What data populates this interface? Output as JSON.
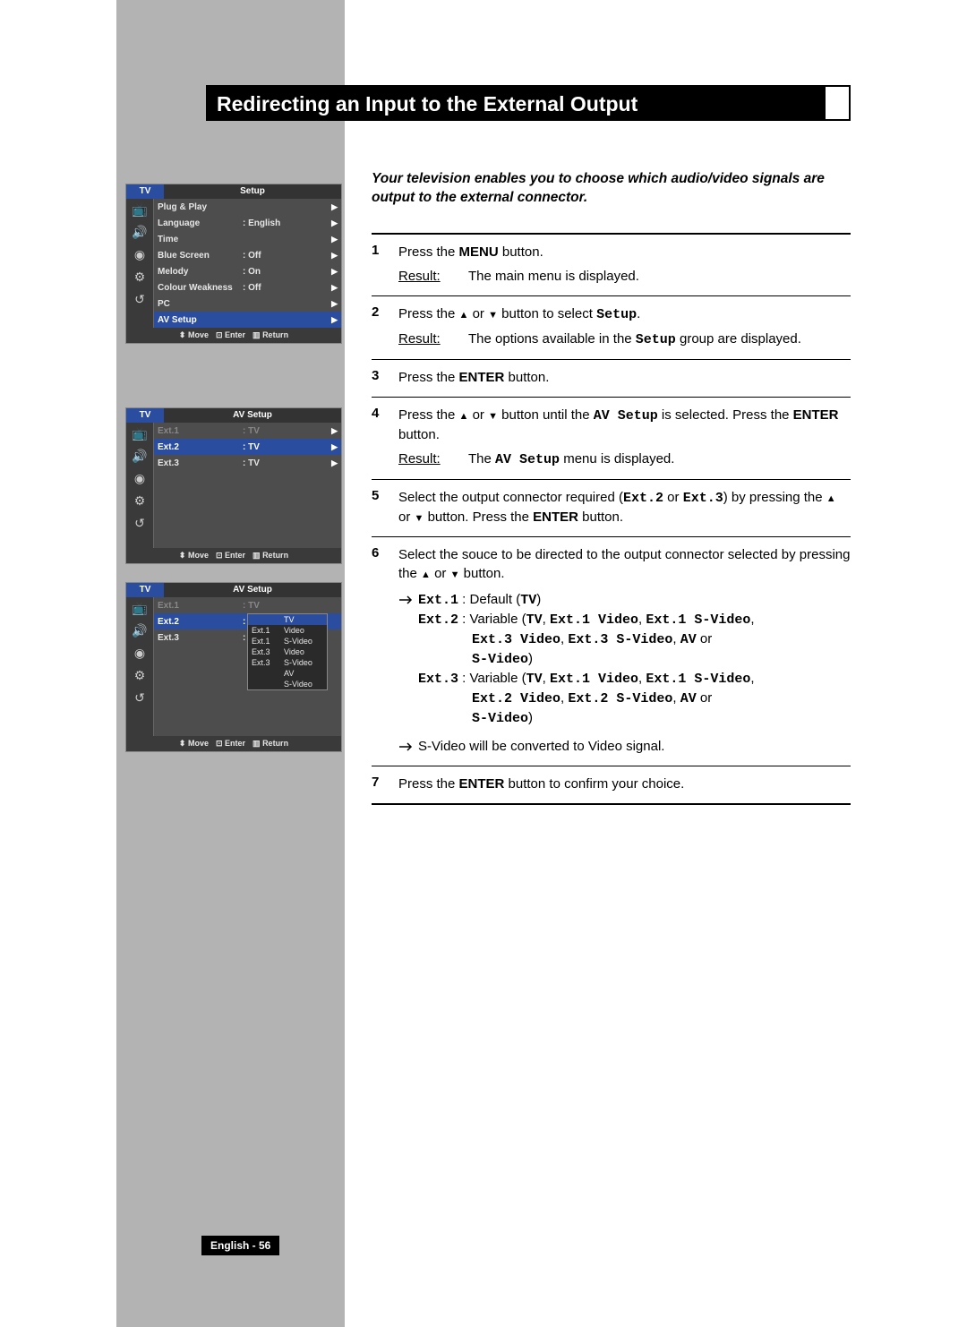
{
  "title": "Redirecting an Input to the External Output",
  "intro": "Your television enables you to choose which audio/video signals are output to the external connector.",
  "page_label": "English - 56",
  "panels": {
    "panel1": {
      "tv": "TV",
      "menu": "Setup",
      "rows": [
        {
          "k": "Plug & Play",
          "v": "",
          "arrow": true
        },
        {
          "k": "Language",
          "v": ": English",
          "arrow": true
        },
        {
          "k": "Time",
          "v": "",
          "arrow": true
        },
        {
          "k": "Blue Screen",
          "v": ": Off",
          "arrow": true
        },
        {
          "k": "Melody",
          "v": ": On",
          "arrow": true
        },
        {
          "k": "Colour Weakness",
          "v": ": Off",
          "arrow": true
        },
        {
          "k": "PC",
          "v": "",
          "arrow": true
        },
        {
          "k": "AV Setup",
          "v": "",
          "arrow": true,
          "sel": true
        }
      ]
    },
    "panel2": {
      "tv": "TV",
      "menu": "AV Setup",
      "rows": [
        {
          "k": "Ext.1",
          "v": ": TV",
          "arrow": true,
          "dim": true
        },
        {
          "k": "Ext.2",
          "v": ": TV",
          "arrow": true,
          "sel": true
        },
        {
          "k": "Ext.3",
          "v": ": TV",
          "arrow": true
        }
      ]
    },
    "panel3": {
      "tv": "TV",
      "menu": "AV Setup",
      "rows": [
        {
          "k": "Ext.1",
          "v": ": TV",
          "dim": true
        },
        {
          "k": "Ext.2",
          "v": ":",
          "sel": true
        },
        {
          "k": "Ext.3",
          "v": ":"
        }
      ],
      "options": [
        {
          "a": "",
          "b": "TV",
          "sel": true
        },
        {
          "a": "Ext.1",
          "b": "Video"
        },
        {
          "a": "Ext.1",
          "b": "S-Video"
        },
        {
          "a": "Ext.3",
          "b": "Video"
        },
        {
          "a": "Ext.3",
          "b": "S-Video"
        },
        {
          "a": "",
          "b": "AV"
        },
        {
          "a": "",
          "b": "S-Video"
        }
      ]
    },
    "footer": {
      "move": "Move",
      "enter": "Enter",
      "return": "Return"
    }
  },
  "steps": {
    "s1": {
      "num": "1",
      "t1a": "Press the ",
      "t1b": "MENU",
      "t1c": " button.",
      "r": "Result:",
      "rt": "The main menu is displayed."
    },
    "s2": {
      "num": "2",
      "t1a": "Press the ",
      "t1b": " or ",
      "t1c": " button to select ",
      "t1d": "Setup",
      "t1e": ".",
      "r": "Result:",
      "rt1": "The options available in the ",
      "rt2": "Setup",
      "rt3": " group are displayed."
    },
    "s3": {
      "num": "3",
      "t1a": "Press the ",
      "t1b": "ENTER",
      "t1c": " button."
    },
    "s4": {
      "num": "4",
      "t1a": "Press the ",
      "t1b": " or ",
      "t1c": " button until the ",
      "t1d": "AV Setup",
      "t1e": " is selected. Press the ",
      "t1f": "ENTER",
      "t1g": " button.",
      "r": "Result:",
      "rt1": "The ",
      "rt2": "AV Setup",
      "rt3": " menu is displayed."
    },
    "s5": {
      "num": "5",
      "t1a": "Select the output connector required (",
      "t1b": "Ext.2",
      "t1c": " or ",
      "t1d": "Ext.3",
      "t1e": ") by pressing the ",
      "t1f": " or ",
      "t1g": " button. Press the ",
      "t1h": "ENTER",
      "t1i": " button."
    },
    "s6": {
      "num": "6",
      "t1": "Select the souce to be directed to the output connector selected by pressing the ",
      "t2": " or ",
      "t3": " button.",
      "ext1a": "Ext.1",
      "ext1b": " : Default (",
      "ext1c": "TV",
      "ext1d": ")",
      "ext2a": "Ext.2",
      "ext2b": " : Variable (",
      "ext2c": "TV",
      "ext2d": ", ",
      "ext2e": "Ext.1 Video",
      "ext2f": ", ",
      "ext2g": "Ext.1 S-Video",
      "ext2h": ", ",
      "ext2i": "Ext.3 Video",
      "ext2j": ", ",
      "ext2k": "Ext.3 S-Video",
      "ext2l": ", ",
      "ext2m": "AV",
      "ext2n": " or ",
      "ext2o": "S-Video",
      "ext2p": ")",
      "ext3a": "Ext.3",
      "ext3b": " : Variable (",
      "ext3c": "TV",
      "ext3d": ", ",
      "ext3e": "Ext.1 Video",
      "ext3f": ", ",
      "ext3g": "Ext.1 S-Video",
      "ext3h": ", ",
      "ext3i": "Ext.2 Video",
      "ext3j": ", ",
      "ext3k": "Ext.2 S-Video",
      "ext3l": ", ",
      "ext3m": "AV",
      "ext3n": " or ",
      "ext3o": "S-Video",
      "ext3p": ")",
      "note": "S-Video will be converted to Video signal."
    },
    "s7": {
      "num": "7",
      "t1a": "Press the ",
      "t1b": "ENTER",
      "t1c": " button to confirm your choice."
    }
  }
}
